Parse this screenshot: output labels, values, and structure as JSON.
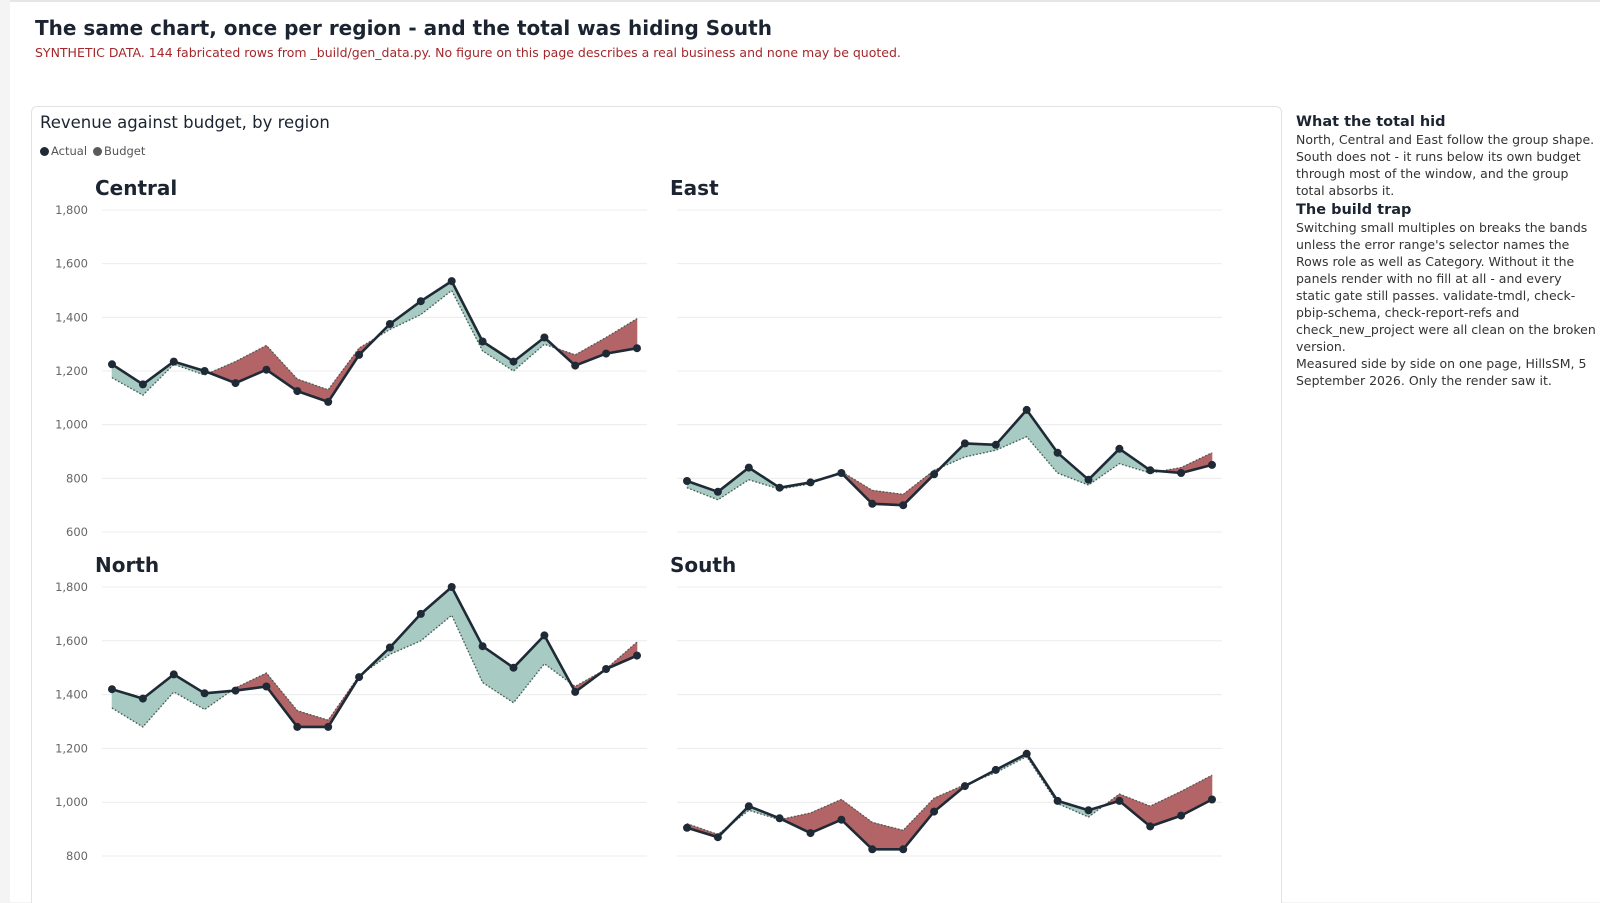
{
  "page": {
    "title": "The same chart, once per region - and the total was hiding South",
    "disclaimer": "SYNTHETIC DATA. 144 fabricated rows from _build/gen_data.py. No figure on this page describes a real business and none may be quoted."
  },
  "chart": {
    "title": "Revenue against budget, by region",
    "legend": [
      {
        "name": "Actual",
        "color": "#1e2a36"
      },
      {
        "name": "Budget",
        "color": "#5a5a5a"
      }
    ]
  },
  "colors": {
    "above_budget": "#a7cbc3",
    "below_budget": "#b26466",
    "actual_line": "#1e2a36",
    "budget_line": "#4a5a55",
    "gridline": "#ececec"
  },
  "chart_data": {
    "type": "line",
    "subtype": "small-multiples",
    "points_per_series": 18,
    "y_ticks_top_row": [
      600,
      800,
      1000,
      1200,
      1400,
      1600,
      1800
    ],
    "y_ticks_bottom_row": [
      800,
      1000,
      1200,
      1400,
      1600,
      1800
    ],
    "ylim_top_row": [
      600,
      1800
    ],
    "ylim_bottom_row": [
      800,
      1800
    ],
    "band_fill": "actual above budget = green, actual below budget = red",
    "panels": [
      {
        "name": "Central",
        "series": [
          {
            "name": "Actual",
            "values": [
              1225,
              1150,
              1235,
              1200,
              1155,
              1205,
              1125,
              1085,
              1260,
              1375,
              1460,
              1535,
              1310,
              1235,
              1325,
              1220,
              1265,
              1285
            ]
          },
          {
            "name": "Budget",
            "values": [
              1175,
              1110,
              1225,
              1185,
              1235,
              1295,
              1170,
              1130,
              1285,
              1355,
              1410,
              1500,
              1275,
              1200,
              1300,
              1260,
              1325,
              1395
            ]
          }
        ]
      },
      {
        "name": "East",
        "series": [
          {
            "name": "Actual",
            "values": [
              790,
              750,
              840,
              765,
              785,
              820,
              705,
              700,
              815,
              930,
              925,
              1055,
              895,
              795,
              910,
              830,
              820,
              850
            ]
          },
          {
            "name": "Budget",
            "values": [
              765,
              720,
              795,
              760,
              780,
              825,
              755,
              740,
              830,
              880,
              905,
              955,
              820,
              775,
              855,
              820,
              840,
              895
            ]
          }
        ]
      },
      {
        "name": "North",
        "series": [
          {
            "name": "Actual",
            "values": [
              1420,
              1385,
              1475,
              1405,
              1415,
              1430,
              1280,
              1280,
              1465,
              1575,
              1700,
              1800,
              1580,
              1500,
              1620,
              1410,
              1495,
              1545
            ]
          },
          {
            "name": "Budget",
            "values": [
              1350,
              1280,
              1410,
              1345,
              1425,
              1480,
              1340,
              1305,
              1470,
              1550,
              1600,
              1695,
              1445,
              1370,
              1515,
              1430,
              1495,
              1595
            ]
          }
        ]
      },
      {
        "name": "South",
        "series": [
          {
            "name": "Actual",
            "values": [
              905,
              870,
              985,
              940,
              885,
              935,
              825,
              825,
              965,
              1060,
              1120,
              1180,
              1005,
              970,
              1005,
              910,
              950,
              1010
            ]
          },
          {
            "name": "Budget",
            "values": [
              920,
              880,
              970,
              935,
              960,
              1010,
              925,
              895,
              1015,
              1065,
              1110,
              1170,
              995,
              945,
              1030,
              985,
              1040,
              1100
            ]
          }
        ]
      }
    ]
  },
  "sidebar": {
    "heading1": "What the total hid",
    "body1": "North, Central and East follow the group shape. South does not - it runs below its own budget through most of the window, and the group total absorbs it.",
    "heading2": "The build trap",
    "body2": "Switching small multiples on breaks the bands unless the error range's selector names the Rows role as well as Category. Without it the panels render with no fill at all - and every static gate still passes. validate-tmdl, check-pbip-schema, check-report-refs and check_new_project were all clean on the broken version.",
    "body3": "Measured side by side on one page, HillsSM, 5 September 2026. Only the render saw it."
  }
}
